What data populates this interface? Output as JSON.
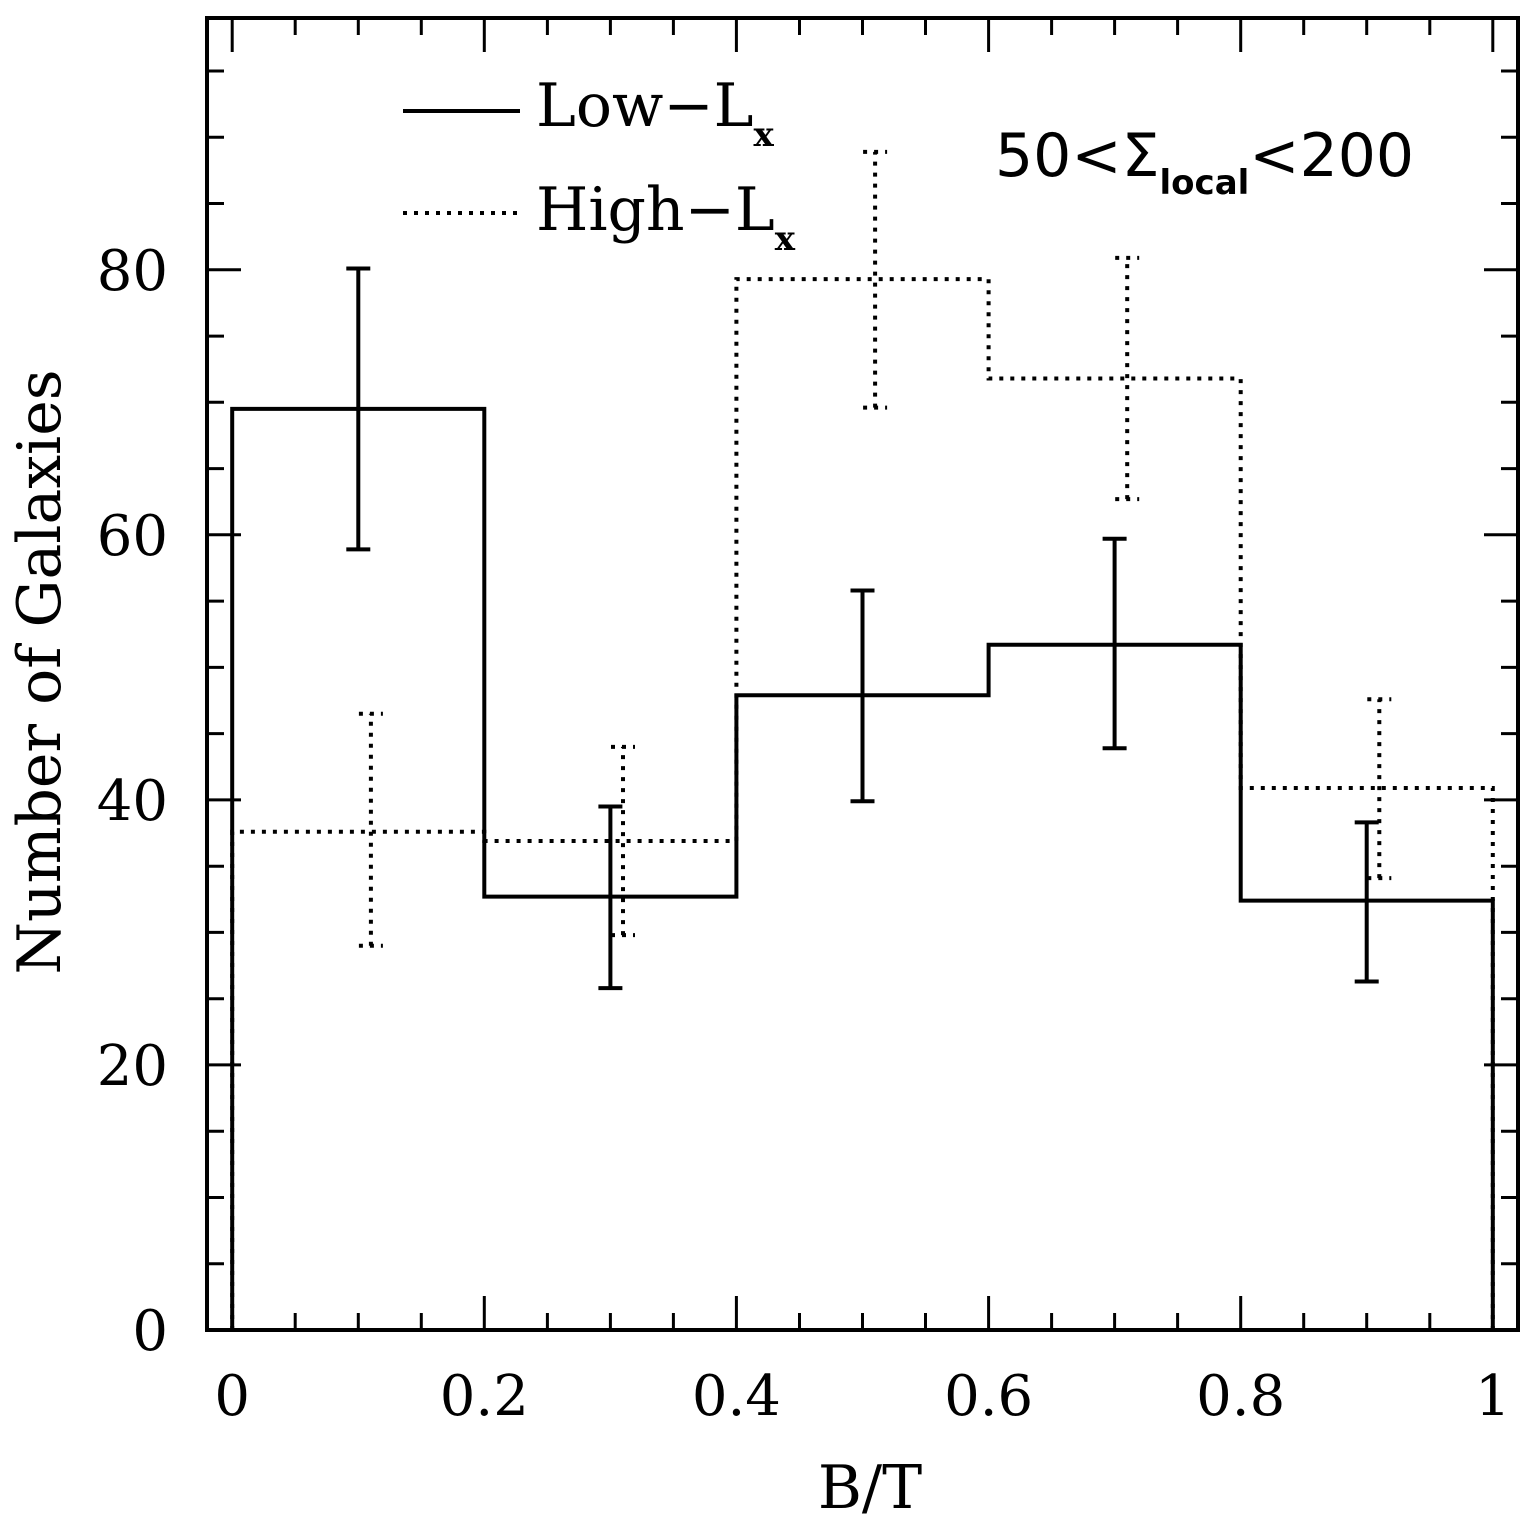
{
  "chart_data": {
    "type": "bar",
    "subtype": "step-histogram-with-error-bars",
    "xlabel": "B/T",
    "ylabel": "Number of Galaxies",
    "xlim": [
      -0.02,
      1.02
    ],
    "ylim": [
      0,
      99
    ],
    "xticks_major": [
      "0",
      "0.2",
      "0.4",
      "0.6",
      "0.8",
      "1"
    ],
    "yticks_major": [
      "0",
      "20",
      "40",
      "60",
      "80"
    ],
    "bin_edges": [
      0,
      0.2,
      0.4,
      0.6,
      0.8,
      1.0
    ],
    "annotation": {
      "prefix": "50<Σ",
      "subscript": "local",
      "suffix": "<200"
    },
    "legend_position": "top-left",
    "series": [
      {
        "name_main": "Low−L",
        "name_sub": "x",
        "line_style": "solid",
        "values": [
          69.5,
          32.7,
          47.9,
          51.7,
          32.4
        ],
        "err_low": [
          58.9,
          25.8,
          39.9,
          43.9,
          26.3
        ],
        "err_high": [
          80.1,
          39.5,
          55.8,
          59.7,
          38.3
        ],
        "err_x": [
          0.1,
          0.3,
          0.5,
          0.7,
          0.9
        ]
      },
      {
        "name_main": "High−L",
        "name_sub": "x",
        "line_style": "dotted",
        "values": [
          37.6,
          36.9,
          79.3,
          71.8,
          40.9
        ],
        "err_low": [
          29.0,
          29.8,
          69.6,
          62.7,
          34.1
        ],
        "err_high": [
          46.5,
          44.0,
          88.9,
          80.9,
          47.6
        ],
        "err_x": [
          0.11,
          0.31,
          0.51,
          0.71,
          0.91
        ]
      }
    ]
  }
}
